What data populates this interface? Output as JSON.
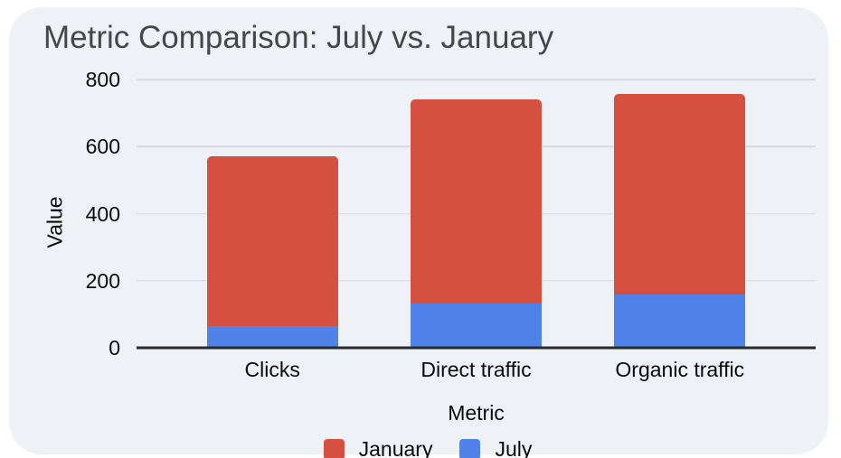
{
  "title": "Metric Comparison: July vs. January",
  "colors": {
    "page_bg": "#FFFFFF",
    "card_bg": "#EEF1F6",
    "january": "#D5503F",
    "july": "#5083EA",
    "gridline": "#D6D9DE",
    "axis_line": "#2B2B2B",
    "title_text": "#474747",
    "label_text": "#0A0A0A"
  },
  "chart_data": {
    "type": "bar",
    "stacked": true,
    "title": "Metric Comparison: July vs. January",
    "categories": [
      "Clicks",
      "Direct traffic",
      "Organic traffic"
    ],
    "series": [
      {
        "name": "July",
        "color_key": "july",
        "values": [
          64,
          132,
          158
        ]
      },
      {
        "name": "January",
        "color_key": "january",
        "values": [
          507,
          610,
          599
        ]
      }
    ],
    "stacked_totals": [
      571,
      742,
      757
    ],
    "xlabel": "Metric",
    "ylabel": "Value",
    "ylim": [
      0,
      800
    ],
    "yticks": [
      0,
      200,
      400,
      600,
      800
    ],
    "grid": true,
    "legend_position": "bottom"
  },
  "legend": {
    "items": [
      {
        "label": "January",
        "color_key": "january"
      },
      {
        "label": "July",
        "color_key": "july"
      }
    ]
  }
}
